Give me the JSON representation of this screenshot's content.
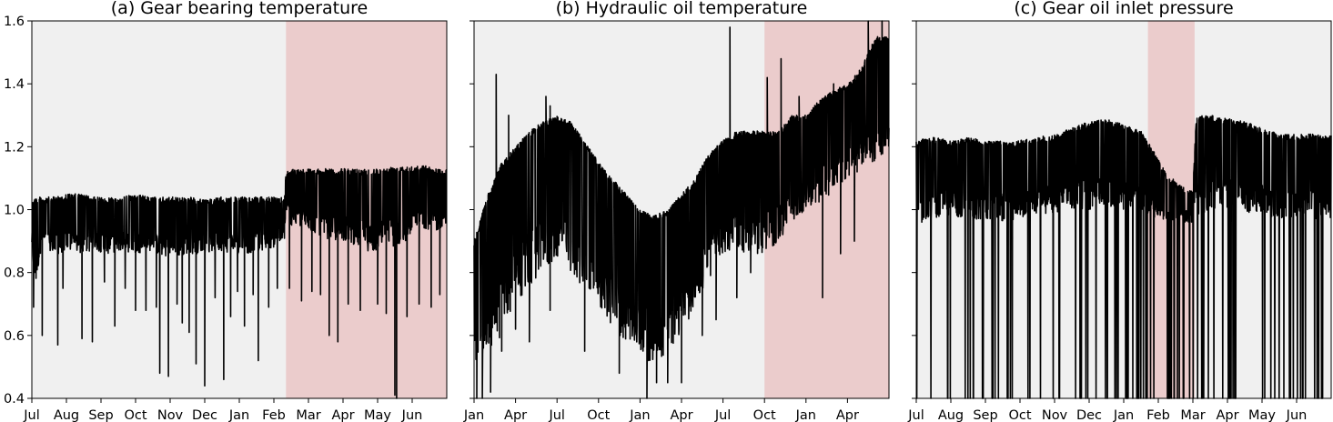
{
  "figure": {
    "colors": {
      "normal_background": "#f0f0f0",
      "fault_background": "#ebcccc",
      "line": "#000000",
      "axes": "#000000"
    }
  },
  "chart_data": [
    {
      "type": "line",
      "title": "(a) Gear bearing temperature",
      "xlabel": "",
      "ylabel": "",
      "ylim": [
        0.4,
        1.6
      ],
      "yticks": [
        "0.4",
        "0.6",
        "0.8",
        "1.0",
        "1.2",
        "1.4",
        "1.6"
      ],
      "y_tick_values": [
        0.4,
        0.6,
        0.8,
        1.0,
        1.2,
        1.4,
        1.6
      ],
      "show_y_tick_labels": true,
      "xlim_months": [
        0,
        12
      ],
      "xticks": [
        "Jul",
        "Aug",
        "Sep",
        "Oct",
        "Nov",
        "Dec",
        "Jan",
        "Feb",
        "Mar",
        "Apr",
        "May",
        "Jun"
      ],
      "x_tick_positions_months": [
        0,
        1,
        2,
        3,
        4,
        5,
        6,
        7,
        8,
        9,
        10,
        11
      ],
      "highlighted_region_months": [
        7.35,
        12
      ],
      "series": [
        {
          "x_months": [
            0,
            0.1,
            0.3,
            0.6,
            1.0,
            1.4,
            1.8,
            2.2,
            2.6,
            3.0,
            3.4,
            3.8,
            4.2,
            4.6,
            5.0,
            5.4,
            5.8,
            6.2,
            6.6,
            7.0,
            7.3,
            7.35,
            7.5,
            7.9,
            8.3,
            8.7,
            9.1,
            9.5,
            9.9,
            10.2,
            10.5,
            10.8,
            11.1,
            11.4,
            11.7,
            12.0
          ],
          "upper": [
            1.04,
            1.04,
            1.04,
            1.04,
            1.05,
            1.05,
            1.04,
            1.04,
            1.04,
            1.05,
            1.04,
            1.04,
            1.04,
            1.04,
            1.03,
            1.04,
            1.04,
            1.04,
            1.04,
            1.04,
            1.04,
            1.12,
            1.13,
            1.13,
            1.13,
            1.13,
            1.13,
            1.13,
            1.13,
            1.13,
            1.14,
            1.14,
            1.14,
            1.14,
            1.13,
            1.13
          ],
          "lower": [
            0.88,
            0.75,
            0.9,
            0.85,
            0.87,
            0.86,
            0.87,
            0.86,
            0.87,
            0.86,
            0.87,
            0.85,
            0.85,
            0.86,
            0.86,
            0.87,
            0.86,
            0.86,
            0.87,
            0.88,
            0.9,
            0.98,
            0.95,
            0.94,
            0.92,
            0.9,
            0.9,
            0.88,
            0.86,
            0.9,
            0.88,
            0.9,
            0.95,
            0.94,
            0.93,
            0.96
          ],
          "dips": [
            [
              0.05,
              0.69
            ],
            [
              0.3,
              0.6
            ],
            [
              0.75,
              0.57
            ],
            [
              0.9,
              0.75
            ],
            [
              1.45,
              0.59
            ],
            [
              1.75,
              0.58
            ],
            [
              2.1,
              0.77
            ],
            [
              2.4,
              0.63
            ],
            [
              2.7,
              0.75
            ],
            [
              3.0,
              0.68
            ],
            [
              3.3,
              0.68
            ],
            [
              3.6,
              0.69
            ],
            [
              3.7,
              0.48
            ],
            [
              3.95,
              0.47
            ],
            [
              4.2,
              0.7
            ],
            [
              4.35,
              0.64
            ],
            [
              4.55,
              0.61
            ],
            [
              4.75,
              0.51
            ],
            [
              5.0,
              0.44
            ],
            [
              5.3,
              0.72
            ],
            [
              5.55,
              0.46
            ],
            [
              5.75,
              0.66
            ],
            [
              5.95,
              0.74
            ],
            [
              6.15,
              0.63
            ],
            [
              6.4,
              0.73
            ],
            [
              6.55,
              0.52
            ],
            [
              6.85,
              0.69
            ],
            [
              7.1,
              0.75
            ],
            [
              7.45,
              0.75
            ],
            [
              7.8,
              0.71
            ],
            [
              8.1,
              0.74
            ],
            [
              8.35,
              0.73
            ],
            [
              8.6,
              0.6
            ],
            [
              8.85,
              0.58
            ],
            [
              9.15,
              0.7
            ],
            [
              9.5,
              0.68
            ],
            [
              10.0,
              0.7
            ],
            [
              10.25,
              0.67
            ],
            [
              10.5,
              0.41
            ],
            [
              10.55,
              0.4
            ],
            [
              10.85,
              0.66
            ],
            [
              11.2,
              0.7
            ],
            [
              11.55,
              0.69
            ],
            [
              11.8,
              0.73
            ]
          ]
        }
      ]
    },
    {
      "type": "line",
      "title": "(b) Hydraulic oil temperature",
      "xlabel": "",
      "ylabel": "",
      "ylim": [
        0.4,
        1.6
      ],
      "yticks": [
        "0.4",
        "0.6",
        "0.8",
        "1.0",
        "1.2",
        "1.4",
        "1.6"
      ],
      "y_tick_values": [
        0.4,
        0.6,
        0.8,
        1.0,
        1.2,
        1.4,
        1.6
      ],
      "show_y_tick_labels": false,
      "xlim_months": [
        0,
        30
      ],
      "xticks": [
        "Jan",
        "Apr",
        "Jul",
        "Oct",
        "Jan",
        "Apr",
        "Jul",
        "Oct",
        "Jan",
        "Apr"
      ],
      "x_tick_positions_months": [
        0,
        3,
        6,
        9,
        12,
        15,
        18,
        21,
        24,
        27
      ],
      "highlighted_region_months": [
        21,
        30
      ],
      "series": [
        {
          "x_months": [
            0,
            1,
            2,
            3,
            4,
            5,
            6,
            7,
            8,
            9,
            10,
            11,
            12,
            13,
            14,
            15,
            16,
            17,
            18,
            19,
            20,
            21,
            22,
            23,
            24,
            25,
            26,
            27,
            28,
            29,
            30
          ],
          "upper": [
            0.9,
            1.05,
            1.15,
            1.2,
            1.25,
            1.28,
            1.3,
            1.28,
            1.22,
            1.15,
            1.1,
            1.05,
            1.0,
            0.98,
            1.0,
            1.05,
            1.1,
            1.18,
            1.22,
            1.25,
            1.25,
            1.25,
            1.25,
            1.3,
            1.3,
            1.35,
            1.38,
            1.4,
            1.45,
            1.55,
            1.55
          ],
          "lower": [
            0.5,
            0.55,
            0.6,
            0.7,
            0.75,
            0.8,
            0.85,
            0.8,
            0.75,
            0.7,
            0.62,
            0.58,
            0.55,
            0.5,
            0.55,
            0.6,
            0.7,
            0.78,
            0.85,
            0.88,
            0.85,
            0.85,
            0.9,
            0.95,
            1.0,
            1.02,
            1.05,
            1.1,
            1.12,
            1.15,
            1.2
          ],
          "spikes": [
            [
              1.6,
              1.43
            ],
            [
              2.5,
              1.3
            ],
            [
              5.2,
              1.36
            ],
            [
              5.5,
              1.33
            ],
            [
              18.5,
              1.58
            ],
            [
              21.2,
              1.42
            ],
            [
              22.2,
              1.48
            ],
            [
              23.5,
              1.36
            ],
            [
              26.0,
              1.4
            ],
            [
              28.5,
              1.6
            ],
            [
              29.5,
              1.6
            ]
          ],
          "dips": [
            [
              0.2,
              0.4
            ],
            [
              0.6,
              0.4
            ],
            [
              1.2,
              0.42
            ],
            [
              2.0,
              0.55
            ],
            [
              3.0,
              0.62
            ],
            [
              4.0,
              0.58
            ],
            [
              5.5,
              0.68
            ],
            [
              8.0,
              0.55
            ],
            [
              10.5,
              0.48
            ],
            [
              12.5,
              0.4
            ],
            [
              13.2,
              0.45
            ],
            [
              14.0,
              0.45
            ],
            [
              15.0,
              0.45
            ],
            [
              16.5,
              0.6
            ],
            [
              17.5,
              0.65
            ],
            [
              19.0,
              0.72
            ],
            [
              20.0,
              0.8
            ],
            [
              25.2,
              0.72
            ],
            [
              26.5,
              0.86
            ],
            [
              27.5,
              0.9
            ]
          ]
        }
      ]
    },
    {
      "type": "line",
      "title": "(c) Gear oil inlet pressure",
      "xlabel": "",
      "ylabel": "",
      "ylim": [
        0.4,
        1.6
      ],
      "yticks": [
        "0.4",
        "0.6",
        "0.8",
        "1.0",
        "1.2",
        "1.4",
        "1.6"
      ],
      "y_tick_values": [
        0.4,
        0.6,
        0.8,
        1.0,
        1.2,
        1.4,
        1.6
      ],
      "show_y_tick_labels": false,
      "xlim_months": [
        0,
        12
      ],
      "xticks": [
        "Jul",
        "Aug",
        "Sep",
        "Oct",
        "Nov",
        "Dec",
        "Jan",
        "Feb",
        "Mar",
        "Apr",
        "May",
        "Jun"
      ],
      "x_tick_positions_months": [
        0,
        1,
        2,
        3,
        4,
        5,
        6,
        7,
        8,
        9,
        10,
        11
      ],
      "highlighted_region_months": [
        6.7,
        8.05
      ],
      "series": [
        {
          "x_months": [
            0,
            0.5,
            1.0,
            1.5,
            2.0,
            2.5,
            3.0,
            3.5,
            4.0,
            4.5,
            5.0,
            5.5,
            6.0,
            6.5,
            6.8,
            7.2,
            7.6,
            8.0,
            8.1,
            8.5,
            9.0,
            9.5,
            10.0,
            10.5,
            11.0,
            11.5,
            12.0
          ],
          "upper": [
            1.22,
            1.23,
            1.22,
            1.23,
            1.22,
            1.22,
            1.22,
            1.23,
            1.24,
            1.26,
            1.28,
            1.29,
            1.27,
            1.25,
            1.2,
            1.12,
            1.08,
            1.06,
            1.3,
            1.3,
            1.29,
            1.28,
            1.26,
            1.24,
            1.24,
            1.24,
            1.24
          ],
          "lower": [
            0.95,
            0.97,
            0.98,
            0.97,
            0.97,
            0.96,
            0.97,
            0.98,
            0.99,
            1.0,
            1.0,
            1.0,
            1.0,
            1.0,
            0.98,
            0.96,
            0.96,
            0.96,
            0.98,
            1.0,
            1.0,
            0.99,
            0.98,
            0.97,
            0.97,
            0.97,
            0.97
          ],
          "floor": 0.4
        }
      ]
    }
  ]
}
